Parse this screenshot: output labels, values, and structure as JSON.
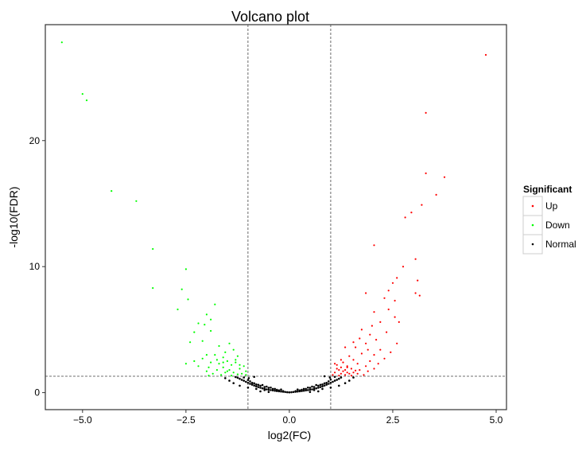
{
  "chart_data": {
    "type": "scatter",
    "title": "Volcano plot",
    "xlabel": "log2(FC)",
    "ylabel": "-log10(FDR)",
    "xlim": [
      -5.9,
      5.25
    ],
    "ylim": [
      -1.35,
      29.2
    ],
    "xticks": [
      -5.0,
      -2.5,
      0.0,
      2.5,
      5.0
    ],
    "xtick_labels": [
      "−5.0",
      "−2.5",
      "0.0",
      "2.5",
      "5.0"
    ],
    "yticks": [
      0,
      10,
      20
    ],
    "ytick_labels": [
      "0",
      "10",
      "20"
    ],
    "grid": false,
    "thresholds": {
      "vertical": [
        -1,
        1
      ],
      "horizontal": 1.3
    },
    "legend": {
      "title": "Significant",
      "placement": "right",
      "entries": [
        {
          "label": "Up",
          "color": "#ff0000"
        },
        {
          "label": "Down",
          "color": "#00ff00"
        },
        {
          "label": "Normal",
          "color": "#000000"
        }
      ]
    },
    "series": [
      {
        "name": "Up",
        "color": "#ff0000",
        "points": [
          [
            4.75,
            26.8
          ],
          [
            3.3,
            22.2
          ],
          [
            3.75,
            17.1
          ],
          [
            3.3,
            17.4
          ],
          [
            3.55,
            15.7
          ],
          [
            3.2,
            14.9
          ],
          [
            2.95,
            14.3
          ],
          [
            2.8,
            13.9
          ],
          [
            2.05,
            11.7
          ],
          [
            3.05,
            10.6
          ],
          [
            2.75,
            10.0
          ],
          [
            2.6,
            9.1
          ],
          [
            2.5,
            8.7
          ],
          [
            3.1,
            8.9
          ],
          [
            2.4,
            8.1
          ],
          [
            3.05,
            7.9
          ],
          [
            3.15,
            7.7
          ],
          [
            2.55,
            7.3
          ],
          [
            1.85,
            7.9
          ],
          [
            2.3,
            7.5
          ],
          [
            2.4,
            6.6
          ],
          [
            2.05,
            6.4
          ],
          [
            2.55,
            6.0
          ],
          [
            2.65,
            5.6
          ],
          [
            2.2,
            5.6
          ],
          [
            2.0,
            5.3
          ],
          [
            1.75,
            5.0
          ],
          [
            1.95,
            4.6
          ],
          [
            2.35,
            4.8
          ],
          [
            1.7,
            4.3
          ],
          [
            2.1,
            4.2
          ],
          [
            1.55,
            4.0
          ],
          [
            1.85,
            3.9
          ],
          [
            2.6,
            3.9
          ],
          [
            2.2,
            3.4
          ],
          [
            1.6,
            3.6
          ],
          [
            1.35,
            3.6
          ],
          [
            1.9,
            3.4
          ],
          [
            2.45,
            3.2
          ],
          [
            2.05,
            3.0
          ],
          [
            1.75,
            3.1
          ],
          [
            1.45,
            2.9
          ],
          [
            2.3,
            2.7
          ],
          [
            1.55,
            2.6
          ],
          [
            1.95,
            2.5
          ],
          [
            2.15,
            2.3
          ],
          [
            1.3,
            2.4
          ],
          [
            1.65,
            2.3
          ],
          [
            1.85,
            2.1
          ],
          [
            1.4,
            2.1
          ],
          [
            2.05,
            1.9
          ],
          [
            1.5,
            1.9
          ],
          [
            1.25,
            2.0
          ],
          [
            1.7,
            1.8
          ],
          [
            1.15,
            1.9
          ],
          [
            1.35,
            1.8
          ],
          [
            1.9,
            1.7
          ],
          [
            1.55,
            1.6
          ],
          [
            1.1,
            1.6
          ],
          [
            1.45,
            1.5
          ],
          [
            1.25,
            1.5
          ],
          [
            1.65,
            1.5
          ],
          [
            1.05,
            1.4
          ],
          [
            1.35,
            1.4
          ],
          [
            1.5,
            1.35
          ],
          [
            1.2,
            1.35
          ],
          [
            1.8,
            1.4
          ],
          [
            1.1,
            2.3
          ],
          [
            1.25,
            2.6
          ],
          [
            1.15,
            2.2
          ],
          [
            1.4,
            2.0
          ],
          [
            1.3,
            1.7
          ],
          [
            1.2,
            1.8
          ],
          [
            1.6,
            1.75
          ],
          [
            1.4,
            1.6
          ]
        ]
      },
      {
        "name": "Down",
        "color": "#00ff00",
        "points": [
          [
            -5.5,
            27.8
          ],
          [
            -5.0,
            23.7
          ],
          [
            -4.9,
            23.2
          ],
          [
            -4.3,
            16.0
          ],
          [
            -3.7,
            15.2
          ],
          [
            -3.3,
            11.4
          ],
          [
            -3.3,
            8.3
          ],
          [
            -2.5,
            9.8
          ],
          [
            -2.6,
            8.2
          ],
          [
            -2.45,
            7.4
          ],
          [
            -2.7,
            6.6
          ],
          [
            -1.8,
            7.0
          ],
          [
            -2.0,
            6.2
          ],
          [
            -1.9,
            5.8
          ],
          [
            -2.2,
            5.5
          ],
          [
            -2.05,
            5.4
          ],
          [
            -2.3,
            4.8
          ],
          [
            -1.9,
            4.9
          ],
          [
            -2.1,
            4.1
          ],
          [
            -2.4,
            4.0
          ],
          [
            -1.45,
            3.9
          ],
          [
            -1.7,
            3.7
          ],
          [
            -1.35,
            3.4
          ],
          [
            -1.55,
            3.2
          ],
          [
            -2.0,
            3.0
          ],
          [
            -1.8,
            3.0
          ],
          [
            -1.25,
            2.9
          ],
          [
            -1.6,
            2.8
          ],
          [
            -2.1,
            2.7
          ],
          [
            -2.3,
            2.5
          ],
          [
            -1.5,
            2.5
          ],
          [
            -1.9,
            2.4
          ],
          [
            -1.3,
            2.4
          ],
          [
            -2.5,
            2.3
          ],
          [
            -1.7,
            2.3
          ],
          [
            -1.4,
            2.2
          ],
          [
            -1.1,
            2.1
          ],
          [
            -2.2,
            2.1
          ],
          [
            -1.6,
            2.0
          ],
          [
            -1.95,
            2.0
          ],
          [
            -1.2,
            1.9
          ],
          [
            -1.45,
            1.8
          ],
          [
            -1.75,
            1.8
          ],
          [
            -1.05,
            1.7
          ],
          [
            -2.0,
            1.7
          ],
          [
            -1.35,
            1.6
          ],
          [
            -1.55,
            1.6
          ],
          [
            -1.15,
            1.5
          ],
          [
            -1.85,
            1.5
          ],
          [
            -1.25,
            1.45
          ],
          [
            -1.65,
            1.4
          ],
          [
            -1.05,
            1.4
          ],
          [
            -1.4,
            1.35
          ],
          [
            -1.95,
            1.35
          ],
          [
            -1.5,
            1.7
          ],
          [
            -1.3,
            2.6
          ],
          [
            -1.75,
            2.6
          ],
          [
            -1.6,
            2.4
          ],
          [
            -1.2,
            2.2
          ]
        ]
      },
      {
        "name": "Normal",
        "color": "#000000",
        "points": [
          [
            0.0,
            0.02
          ],
          [
            -0.05,
            0.03
          ],
          [
            0.05,
            0.03
          ],
          [
            -0.1,
            0.05
          ],
          [
            0.1,
            0.05
          ],
          [
            -0.15,
            0.07
          ],
          [
            0.15,
            0.07
          ],
          [
            -0.2,
            0.09
          ],
          [
            0.2,
            0.09
          ],
          [
            -0.25,
            0.11
          ],
          [
            0.25,
            0.11
          ],
          [
            -0.3,
            0.13
          ],
          [
            0.3,
            0.13
          ],
          [
            -0.35,
            0.15
          ],
          [
            0.35,
            0.15
          ],
          [
            -0.4,
            0.18
          ],
          [
            0.4,
            0.18
          ],
          [
            -0.45,
            0.2
          ],
          [
            0.45,
            0.2
          ],
          [
            -0.5,
            0.23
          ],
          [
            0.5,
            0.23
          ],
          [
            -0.55,
            0.26
          ],
          [
            0.55,
            0.26
          ],
          [
            -0.6,
            0.3
          ],
          [
            0.6,
            0.3
          ],
          [
            -0.65,
            0.34
          ],
          [
            0.65,
            0.34
          ],
          [
            -0.7,
            0.39
          ],
          [
            0.7,
            0.39
          ],
          [
            -0.75,
            0.44
          ],
          [
            0.75,
            0.44
          ],
          [
            -0.8,
            0.5
          ],
          [
            0.8,
            0.5
          ],
          [
            -0.85,
            0.56
          ],
          [
            0.85,
            0.56
          ],
          [
            -0.9,
            0.63
          ],
          [
            0.9,
            0.63
          ],
          [
            -0.95,
            0.7
          ],
          [
            0.95,
            0.7
          ],
          [
            -1.0,
            0.78
          ],
          [
            1.0,
            0.78
          ],
          [
            -1.05,
            0.86
          ],
          [
            1.05,
            0.86
          ],
          [
            -1.1,
            0.95
          ],
          [
            1.1,
            0.95
          ],
          [
            -1.15,
            1.02
          ],
          [
            1.15,
            1.02
          ],
          [
            -1.2,
            1.1
          ],
          [
            1.2,
            1.1
          ],
          [
            -1.25,
            1.18
          ],
          [
            1.25,
            1.2
          ],
          [
            -1.3,
            1.24
          ],
          [
            -0.2,
            0.25
          ],
          [
            0.2,
            0.25
          ],
          [
            -0.35,
            0.3
          ],
          [
            0.35,
            0.3
          ],
          [
            -0.5,
            0.38
          ],
          [
            0.5,
            0.38
          ],
          [
            -0.6,
            0.45
          ],
          [
            0.6,
            0.45
          ],
          [
            -0.7,
            0.55
          ],
          [
            0.7,
            0.55
          ],
          [
            -0.8,
            0.65
          ],
          [
            0.8,
            0.65
          ],
          [
            -0.9,
            0.78
          ],
          [
            0.9,
            0.78
          ],
          [
            -0.95,
            0.9
          ],
          [
            0.95,
            0.9
          ],
          [
            -0.65,
            0.6
          ],
          [
            0.65,
            0.6
          ],
          [
            -0.45,
            0.4
          ],
          [
            0.45,
            0.4
          ],
          [
            -0.3,
            0.22
          ],
          [
            0.3,
            0.22
          ],
          [
            -0.15,
            0.12
          ],
          [
            0.15,
            0.12
          ],
          [
            -0.75,
            0.62
          ],
          [
            0.75,
            0.62
          ],
          [
            -0.85,
            0.74
          ],
          [
            0.85,
            0.74
          ],
          [
            -0.55,
            0.48
          ],
          [
            0.55,
            0.48
          ],
          [
            -0.4,
            0.3
          ],
          [
            0.4,
            0.3
          ],
          [
            -0.25,
            0.18
          ],
          [
            0.25,
            0.18
          ],
          [
            -1.0,
            1.0
          ],
          [
            1.0,
            1.05
          ],
          [
            -0.98,
            1.15
          ],
          [
            0.98,
            1.2
          ],
          [
            -1.1,
            1.2
          ],
          [
            1.1,
            1.25
          ],
          [
            -0.6,
            0.2
          ],
          [
            0.6,
            0.2
          ],
          [
            -0.8,
            0.3
          ],
          [
            0.8,
            0.3
          ],
          [
            -1.0,
            0.4
          ],
          [
            1.0,
            0.4
          ],
          [
            -1.2,
            0.55
          ],
          [
            1.2,
            0.55
          ],
          [
            -1.35,
            0.75
          ],
          [
            1.35,
            0.75
          ],
          [
            -1.45,
            0.95
          ],
          [
            1.45,
            0.95
          ],
          [
            -1.55,
            1.15
          ],
          [
            1.55,
            1.2
          ],
          [
            -0.7,
            0.1
          ],
          [
            0.7,
            0.1
          ],
          [
            -0.5,
            0.05
          ],
          [
            0.5,
            0.05
          ],
          [
            0.85,
            1.3
          ],
          [
            -0.85,
            1.25
          ]
        ]
      }
    ]
  }
}
